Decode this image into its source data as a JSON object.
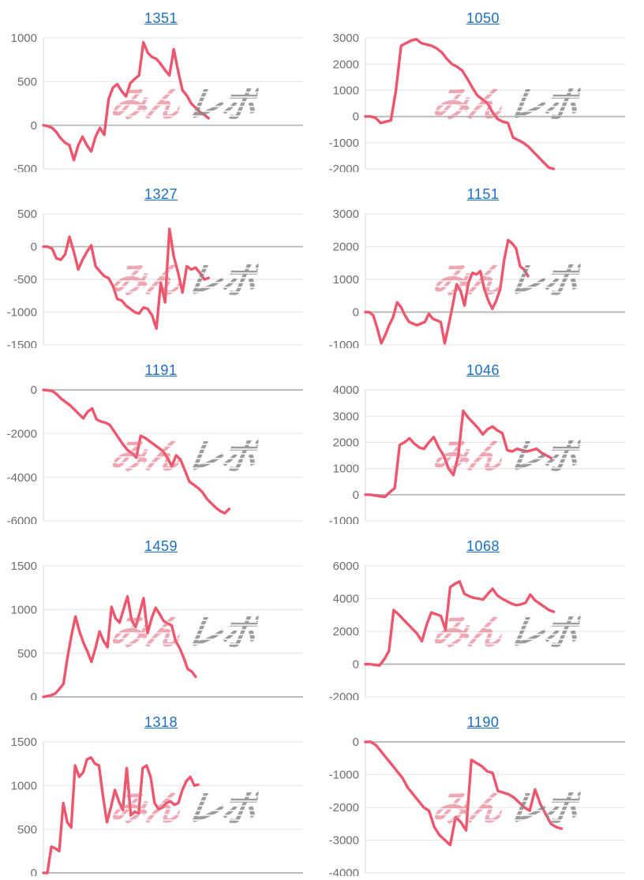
{
  "watermark": {
    "pink_text": "みん",
    "gray_text": "レポ"
  },
  "colors": {
    "line": "#f0556e",
    "grid": "#e7e7e7",
    "zero_line": "#b3b3b3",
    "axis": "#dddddd",
    "tick_label": "#6e6e6e",
    "title_link": "#1b6ec8",
    "watermark_pink": "#e77686",
    "watermark_gray": "#8f8f8f"
  },
  "chart_data": [
    {
      "type": "line",
      "title": "1351",
      "xlabel": "",
      "ylabel": "",
      "ylim": [
        -500,
        1000
      ],
      "yticks": [
        1000,
        500,
        0,
        -500
      ],
      "grid": true,
      "x_span": 0.64,
      "values": [
        0,
        -10,
        -30,
        -80,
        -150,
        -200,
        -230,
        -400,
        -230,
        -130,
        -230,
        -300,
        -130,
        -30,
        -110,
        300,
        430,
        470,
        390,
        330,
        480,
        530,
        570,
        950,
        830,
        780,
        760,
        700,
        630,
        570,
        870,
        620,
        400,
        340,
        250,
        200,
        150,
        120,
        80
      ]
    },
    {
      "type": "line",
      "title": "1050",
      "xlabel": "",
      "ylabel": "",
      "ylim": [
        -2000,
        3000
      ],
      "yticks": [
        3000,
        2000,
        1000,
        0,
        -1000,
        -2000
      ],
      "grid": true,
      "x_span": 0.73,
      "values": [
        0,
        0,
        -50,
        -250,
        -200,
        -150,
        1000,
        2700,
        2800,
        2900,
        2950,
        2800,
        2750,
        2700,
        2600,
        2450,
        2200,
        2000,
        1900,
        1750,
        1450,
        1100,
        800,
        650,
        500,
        150,
        -100,
        -200,
        -250,
        -800,
        -900,
        -1000,
        -1150,
        -1350,
        -1550,
        -1750,
        -1950,
        -2000
      ]
    },
    {
      "type": "line",
      "title": "1327",
      "xlabel": "",
      "ylabel": "",
      "ylim": [
        -1500,
        500
      ],
      "yticks": [
        500,
        0,
        -500,
        -1000,
        -1500
      ],
      "grid": true,
      "x_span": 0.64,
      "values": [
        0,
        0,
        -30,
        -180,
        -200,
        -120,
        150,
        -80,
        -350,
        -200,
        -80,
        20,
        -300,
        -380,
        -450,
        -480,
        -600,
        -800,
        -820,
        -900,
        -950,
        -1000,
        -1020,
        -930,
        -950,
        -1050,
        -1250,
        -550,
        -850,
        270,
        -150,
        -400,
        -700,
        -300,
        -350,
        -320,
        -400,
        -500,
        -480
      ]
    },
    {
      "type": "line",
      "title": "1151",
      "xlabel": "",
      "ylabel": "",
      "ylim": [
        -1000,
        3000
      ],
      "yticks": [
        3000,
        2000,
        1000,
        0,
        -1000
      ],
      "grid": true,
      "x_span": 0.63,
      "values": [
        0,
        0,
        -100,
        -500,
        -950,
        -700,
        -400,
        -150,
        300,
        150,
        -100,
        -300,
        -350,
        -400,
        -350,
        -300,
        -50,
        -200,
        -250,
        -300,
        -950,
        -400,
        200,
        850,
        650,
        200,
        900,
        1200,
        1150,
        1250,
        700,
        350,
        100,
        350,
        700,
        1600,
        2200,
        2100,
        1950,
        1400,
        1300,
        1100
      ]
    },
    {
      "type": "line",
      "title": "1191",
      "xlabel": "",
      "ylabel": "",
      "ylim": [
        -6000,
        0
      ],
      "yticks": [
        0,
        -2000,
        -4000,
        -6000
      ],
      "grid": true,
      "x_span": 0.72,
      "values": [
        0,
        -20,
        -50,
        -200,
        -400,
        -550,
        -700,
        -900,
        -1100,
        -1300,
        -1000,
        -850,
        -1350,
        -1450,
        -1500,
        -1600,
        -1900,
        -2200,
        -2500,
        -2750,
        -2900,
        -3100,
        -2100,
        -2200,
        -2350,
        -2500,
        -2650,
        -2800,
        -3100,
        -3500,
        -3000,
        -3200,
        -3700,
        -4200,
        -4350,
        -4500,
        -4700,
        -5000,
        -5200,
        -5400,
        -5550,
        -5650,
        -5450
      ]
    },
    {
      "type": "line",
      "title": "1046",
      "xlabel": "",
      "ylabel": "",
      "ylim": [
        -1000,
        4000
      ],
      "yticks": [
        4000,
        3000,
        2000,
        1000,
        0,
        -1000
      ],
      "grid": true,
      "x_span": 0.72,
      "values": [
        0,
        0,
        -30,
        -60,
        -80,
        100,
        250,
        1900,
        2000,
        2150,
        1950,
        1800,
        1750,
        2000,
        2200,
        1800,
        1500,
        1000,
        750,
        1500,
        3200,
        2950,
        2750,
        2550,
        2300,
        2500,
        2600,
        2450,
        2350,
        1700,
        1650,
        1750,
        1700,
        1650,
        1700,
        1750,
        1600,
        1500,
        1400
      ]
    },
    {
      "type": "line",
      "title": "1459",
      "xlabel": "",
      "ylabel": "",
      "ylim": [
        0,
        1500
      ],
      "yticks": [
        1500,
        1000,
        500,
        0
      ],
      "grid": true,
      "x_span": 0.59,
      "values": [
        0,
        10,
        20,
        40,
        90,
        150,
        450,
        700,
        920,
        750,
        620,
        520,
        400,
        560,
        750,
        640,
        570,
        1030,
        900,
        850,
        1000,
        1150,
        880,
        800,
        960,
        1130,
        730,
        900,
        1020,
        950,
        870,
        840,
        820,
        640,
        560,
        450,
        320,
        290,
        230
      ]
    },
    {
      "type": "line",
      "title": "1068",
      "xlabel": "",
      "ylabel": "",
      "ylim": [
        -2000,
        6000
      ],
      "yticks": [
        6000,
        4000,
        2000,
        0,
        -2000
      ],
      "grid": true,
      "x_span": 0.73,
      "values": [
        0,
        0,
        -50,
        -80,
        300,
        800,
        3300,
        3050,
        2750,
        2450,
        2150,
        1850,
        1400,
        2400,
        3150,
        3050,
        2950,
        2100,
        4700,
        4900,
        5050,
        4300,
        4150,
        4050,
        4000,
        3950,
        4300,
        4600,
        4200,
        4000,
        3850,
        3700,
        3600,
        3650,
        3750,
        4250,
        3900,
        3700,
        3500,
        3300,
        3200
      ]
    },
    {
      "type": "line",
      "title": "1318",
      "xlabel": "",
      "ylabel": "",
      "ylim": [
        0,
        1500
      ],
      "yticks": [
        1500,
        1000,
        500,
        0
      ],
      "grid": true,
      "x_span": 0.6,
      "values": [
        0,
        0,
        300,
        280,
        250,
        800,
        580,
        520,
        1230,
        1100,
        1150,
        1300,
        1320,
        1250,
        1230,
        880,
        580,
        750,
        950,
        820,
        720,
        1200,
        660,
        700,
        680,
        1200,
        1230,
        1100,
        800,
        730,
        750,
        800,
        820,
        780,
        800,
        950,
        1050,
        1100,
        1000,
        1010
      ]
    },
    {
      "type": "line",
      "title": "1190",
      "xlabel": "",
      "ylabel": "",
      "ylim": [
        -4000,
        0
      ],
      "yticks": [
        0,
        -1000,
        -2000,
        -3000,
        -4000
      ],
      "grid": true,
      "x_span": 0.76,
      "values": [
        0,
        0,
        -100,
        -300,
        -500,
        -700,
        -900,
        -1100,
        -1400,
        -1600,
        -1800,
        -2000,
        -2100,
        -2600,
        -2850,
        -3000,
        -3150,
        -2300,
        -2450,
        -2700,
        -550,
        -650,
        -750,
        -900,
        -950,
        -1500,
        -1550,
        -1600,
        -1700,
        -1850,
        -2000,
        -2100,
        -1450,
        -1900,
        -2200,
        -2500,
        -2600,
        -2650
      ]
    }
  ]
}
